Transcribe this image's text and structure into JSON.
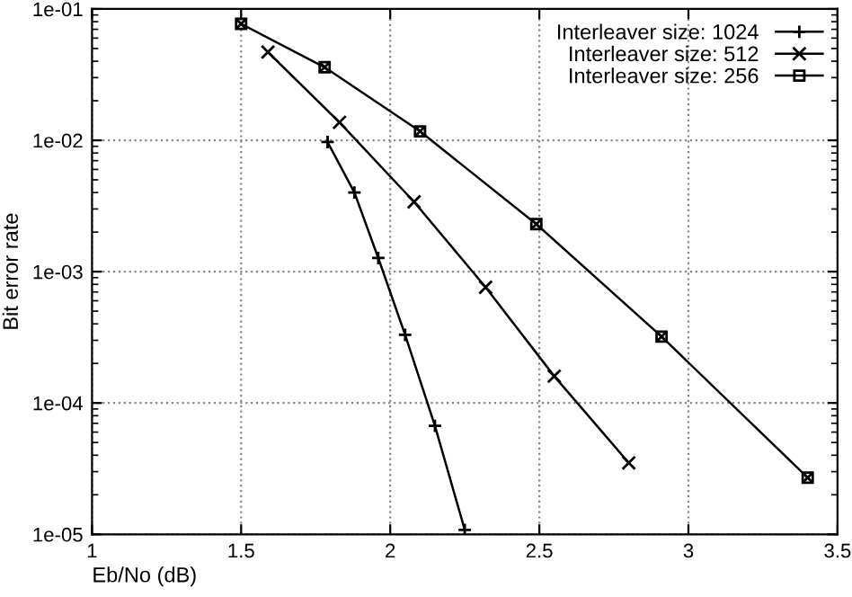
{
  "chart_data": {
    "type": "line",
    "xlabel": "Eb/No (dB)",
    "ylabel": "Bit error rate",
    "log": "y",
    "xlim": [
      1,
      3.5
    ],
    "xticks": [
      1,
      1.5,
      2,
      2.5,
      3,
      3.5
    ],
    "ylim": [
      1e-05,
      0.1
    ],
    "yticks": [
      {
        "value": 1e-05,
        "label": "1e-05"
      },
      {
        "value": 0.0001,
        "label": "1e-04"
      },
      {
        "value": 0.001,
        "label": "1e-03"
      },
      {
        "value": 0.01,
        "label": "1e-02"
      },
      {
        "value": 0.1,
        "label": "1e-01"
      }
    ],
    "grid": true,
    "legend": "top right",
    "line_style": "solid",
    "series": [
      {
        "name": "Interleaver size: 1024",
        "color": "#000000",
        "marker": "plus",
        "x": [
          1.79,
          1.88,
          1.96,
          2.05,
          2.15,
          2.25
        ],
        "values": [
          0.0097,
          0.004,
          0.00127,
          0.00033,
          6.7e-05,
          1.08e-05
        ]
      },
      {
        "name": "Interleaver size: 512",
        "color": "#000000",
        "marker": "cross",
        "x": [
          1.59,
          1.83,
          2.08,
          2.32,
          2.55,
          2.8
        ],
        "values": [
          0.047,
          0.0137,
          0.0034,
          0.00076,
          0.00016,
          3.5e-05
        ]
      },
      {
        "name": "Interleaver size: 256",
        "color": "#000000",
        "marker": "square",
        "x": [
          1.5,
          1.78,
          2.1,
          2.49,
          2.91,
          3.4
        ],
        "values": [
          0.077,
          0.036,
          0.0117,
          0.0023,
          0.00032,
          2.7e-05
        ]
      }
    ]
  }
}
